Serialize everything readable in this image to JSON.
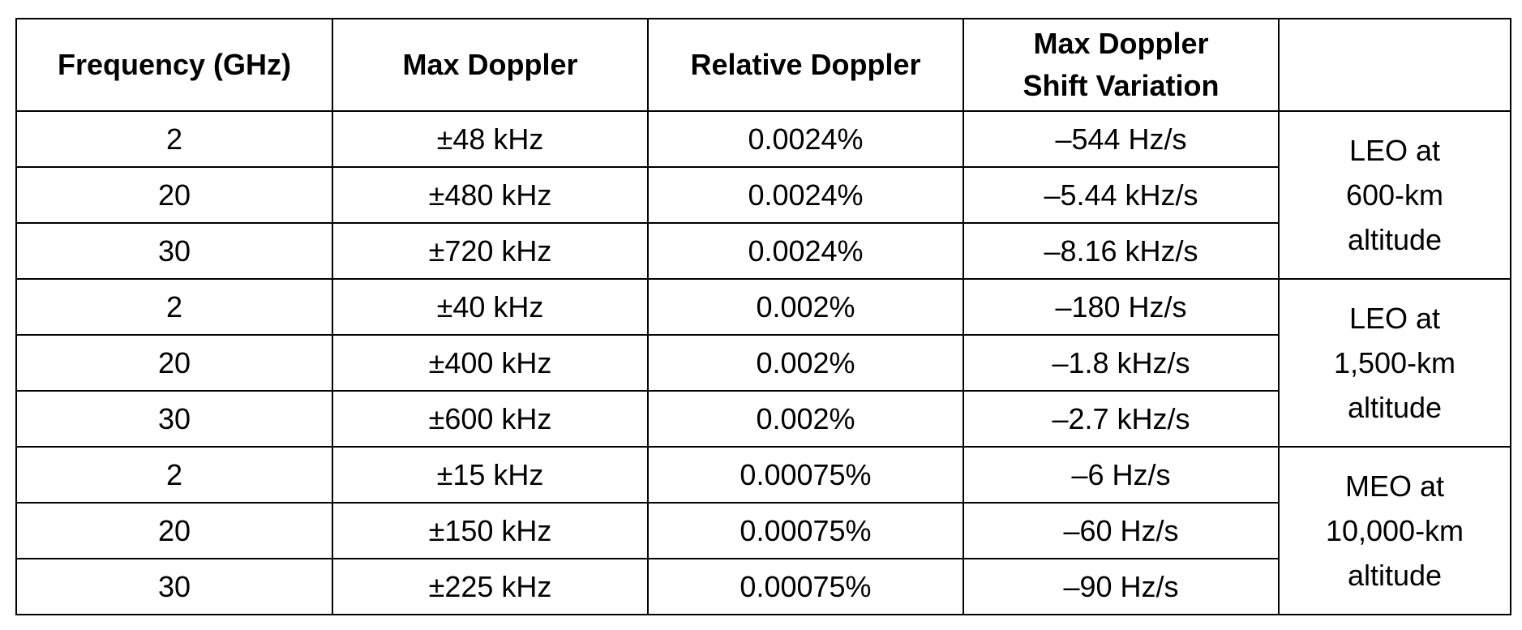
{
  "table": {
    "headers": [
      {
        "lines": [
          "Frequency (GHz)"
        ]
      },
      {
        "lines": [
          "Max Doppler"
        ]
      },
      {
        "lines": [
          "Relative Doppler"
        ]
      },
      {
        "lines": [
          "Max Doppler",
          "Shift Variation"
        ]
      },
      {
        "lines": [
          ""
        ]
      }
    ],
    "groups": [
      {
        "label_lines": [
          "LEO at",
          "600-km",
          "altitude"
        ],
        "rows": [
          {
            "frequency": "2",
            "max_doppler": "±48 kHz",
            "relative_doppler": "0.0024%",
            "shift_variation": "–544 Hz/s"
          },
          {
            "frequency": "20",
            "max_doppler": "±480 kHz",
            "relative_doppler": "0.0024%",
            "shift_variation": "–5.44 kHz/s"
          },
          {
            "frequency": "30",
            "max_doppler": "±720 kHz",
            "relative_doppler": "0.0024%",
            "shift_variation": "–8.16 kHz/s"
          }
        ]
      },
      {
        "label_lines": [
          "LEO at",
          "1,500-km",
          "altitude"
        ],
        "rows": [
          {
            "frequency": "2",
            "max_doppler": "±40 kHz",
            "relative_doppler": "0.002%",
            "shift_variation": "–180 Hz/s"
          },
          {
            "frequency": "20",
            "max_doppler": "±400 kHz",
            "relative_doppler": "0.002%",
            "shift_variation": "–1.8 kHz/s"
          },
          {
            "frequency": "30",
            "max_doppler": "±600 kHz",
            "relative_doppler": "0.002%",
            "shift_variation": "–2.7 kHz/s"
          }
        ]
      },
      {
        "label_lines": [
          "MEO at",
          "10,000-km",
          "altitude"
        ],
        "rows": [
          {
            "frequency": "2",
            "max_doppler": "±15 kHz",
            "relative_doppler": "0.00075%",
            "shift_variation": "–6 Hz/s"
          },
          {
            "frequency": "20",
            "max_doppler": "±150 kHz",
            "relative_doppler": "0.00075%",
            "shift_variation": "–60 Hz/s"
          },
          {
            "frequency": "30",
            "max_doppler": "±225 kHz",
            "relative_doppler": "0.00075%",
            "shift_variation": "–90 Hz/s"
          }
        ]
      }
    ]
  }
}
